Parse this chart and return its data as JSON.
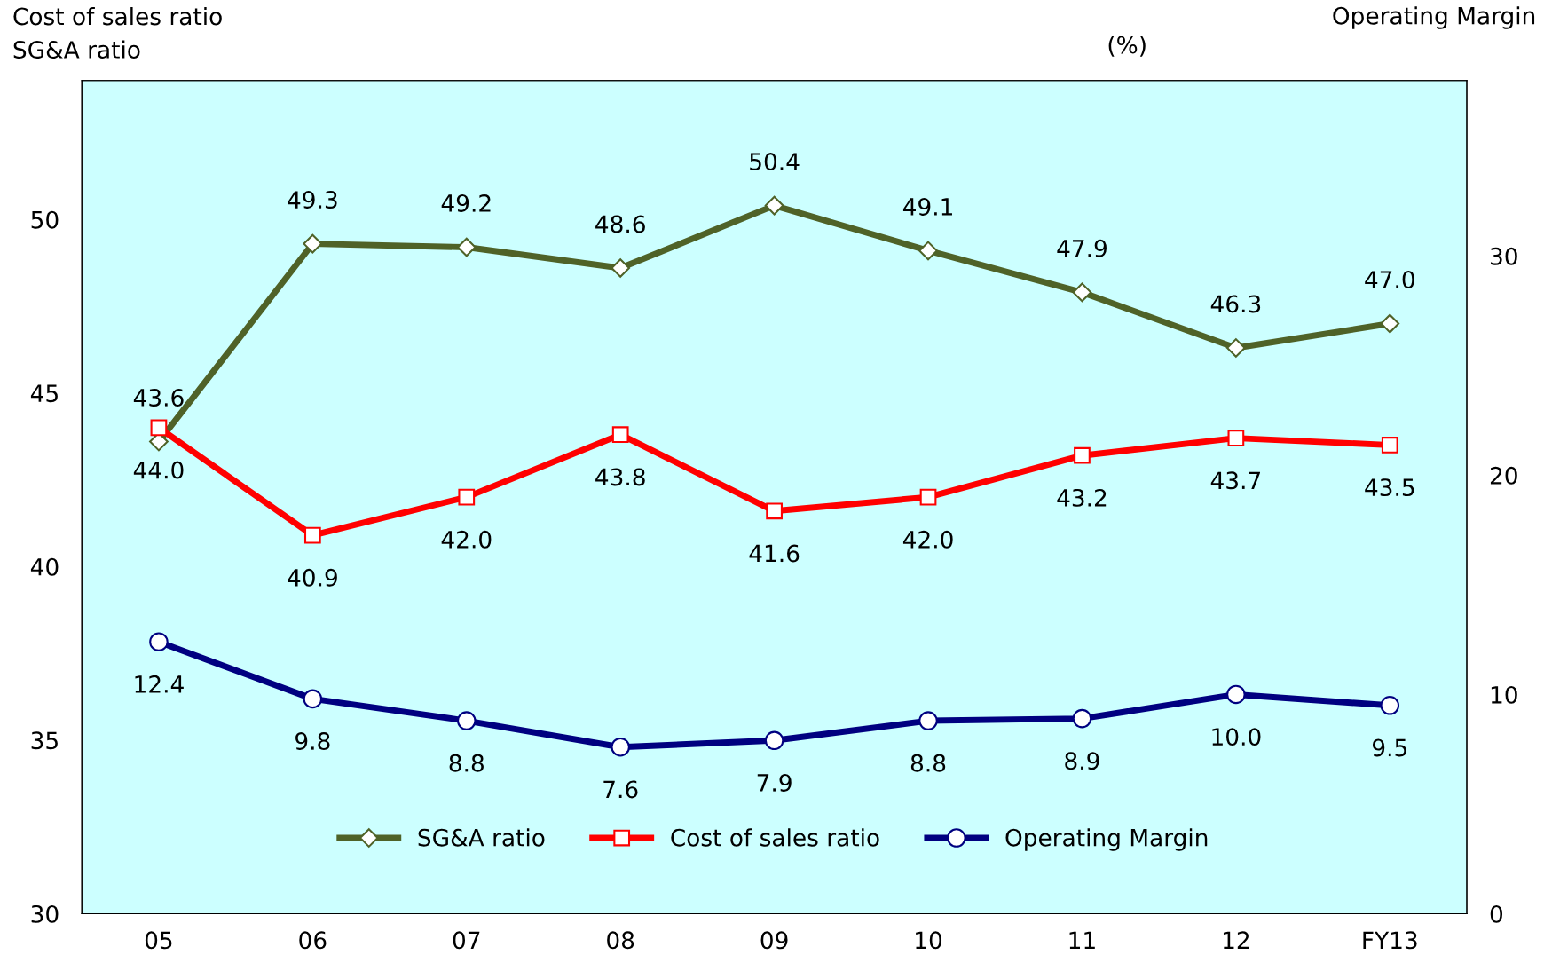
{
  "chart_data": {
    "type": "line",
    "ylabel": "Cost of sales ratio\nSG&A ratio",
    "y2label": "Operating Margin",
    "annotations": [
      "(%)"
    ],
    "categories": [
      "05",
      "06",
      "07",
      "08",
      "09",
      "10",
      "11",
      "12",
      "FY13"
    ],
    "series": [
      {
        "name": "SG&A ratio",
        "color": "#4f6228",
        "marker": "diamond",
        "values": [
          43.6,
          49.3,
          49.2,
          48.6,
          50.4,
          49.1,
          47.9,
          46.3,
          47.0
        ],
        "value_labels": [
          "43.6",
          "49.3",
          "49.2",
          "48.6",
          "50.4",
          "49.1",
          "47.9",
          "46.3",
          "47.0"
        ]
      },
      {
        "name": "Cost of sales ratio",
        "color": "#ff0000",
        "marker": "square",
        "values": [
          44.0,
          40.9,
          42.0,
          43.8,
          41.6,
          42.0,
          43.2,
          43.7,
          43.5
        ],
        "value_labels": [
          "44.0",
          "40.9",
          "42.0",
          "43.8",
          "41.6",
          "42.0",
          "43.2",
          "43.7",
          "43.5"
        ]
      },
      {
        "name": "Operating Margin",
        "color": "#000080",
        "marker": "circle",
        "axis": "y2",
        "values": [
          12.4,
          9.8,
          8.8,
          7.6,
          7.9,
          8.8,
          8.9,
          10.0,
          9.5
        ],
        "value_labels": [
          "12.4",
          "9.8",
          "8.8",
          "7.6",
          "7.9",
          "8.8",
          "8.9",
          "10.0",
          "9.5"
        ]
      }
    ],
    "ylim": [
      30,
      54
    ],
    "yticks": [
      30,
      35,
      40,
      45,
      50
    ],
    "y2lim": [
      0,
      38
    ],
    "y2ticks": [
      0,
      10,
      20,
      30
    ],
    "grid": false,
    "legend": "bottom",
    "line_style": "solid"
  }
}
